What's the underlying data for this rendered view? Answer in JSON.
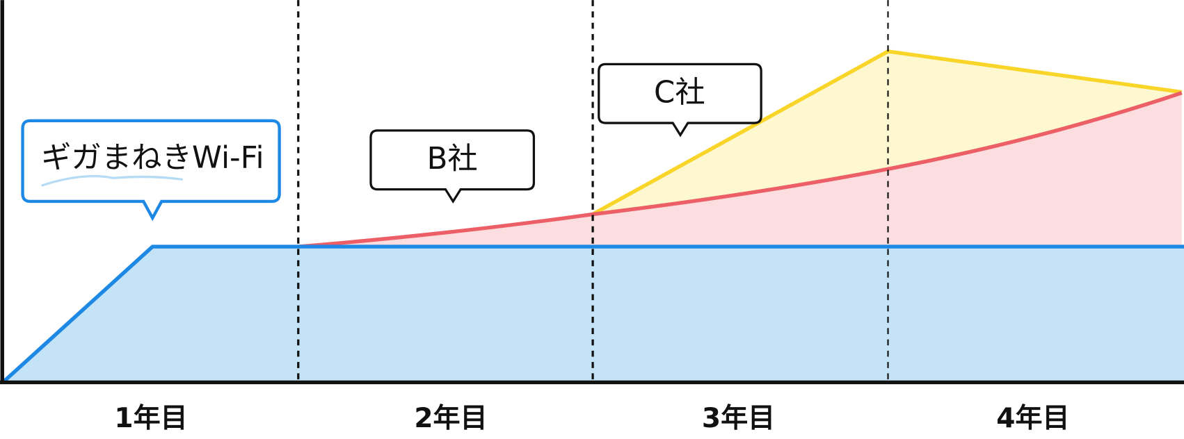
{
  "callouts": [
    "ギガまねきWi-Fi",
    "B社",
    "C社"
  ],
  "periods": [
    "1年目",
    "2年目",
    "3年目",
    "4年目"
  ]
}
